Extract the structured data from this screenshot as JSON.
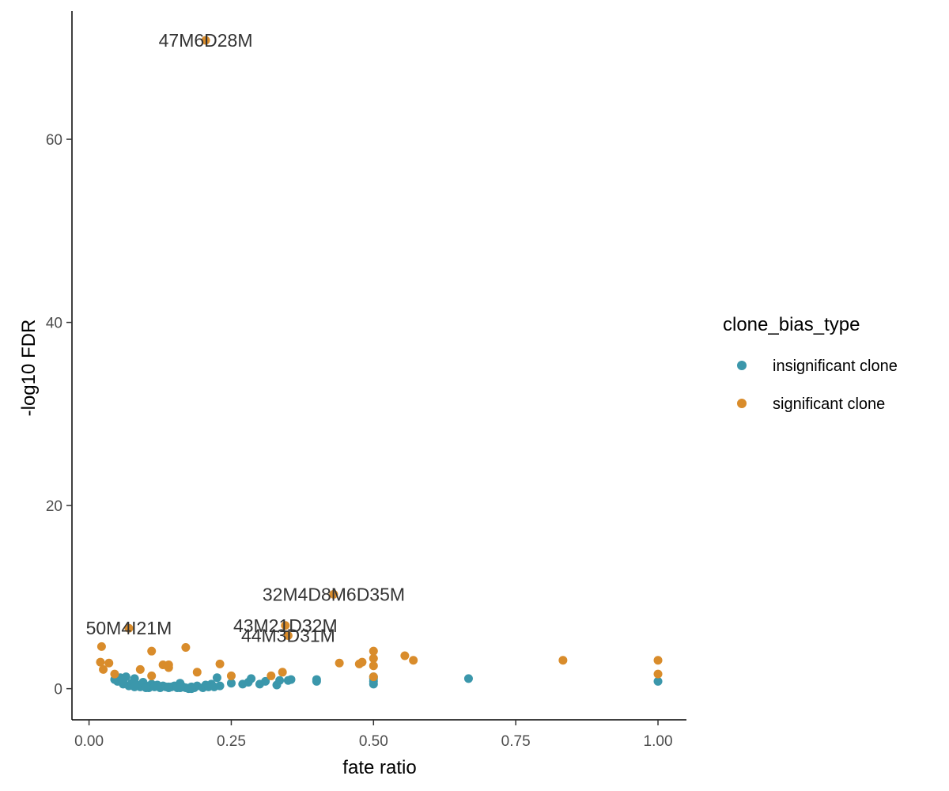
{
  "chart_data": {
    "type": "scatter",
    "title": "",
    "xlabel": "fate ratio",
    "ylabel": "-log10 FDR",
    "xlim": [
      -0.03,
      1.05
    ],
    "ylim": [
      -3.4,
      74
    ],
    "x_ticks": [
      0.0,
      0.25,
      0.5,
      0.75,
      1.0
    ],
    "x_tick_labels": [
      "0.00",
      "0.25",
      "0.50",
      "0.75",
      "1.00"
    ],
    "y_ticks": [
      0,
      20,
      40,
      60
    ],
    "y_tick_labels": [
      "0",
      "20",
      "40",
      "60"
    ],
    "grid": false,
    "legend": {
      "title": "clone_bias_type",
      "position": "right"
    },
    "series": [
      {
        "name": "insignificant clone",
        "color": "#3b97ab",
        "x": [
          0.045,
          0.05,
          0.055,
          0.06,
          0.065,
          0.07,
          0.075,
          0.08,
          0.085,
          0.09,
          0.095,
          0.1,
          0.105,
          0.11,
          0.115,
          0.12,
          0.125,
          0.13,
          0.135,
          0.14,
          0.145,
          0.15,
          0.155,
          0.16,
          0.165,
          0.17,
          0.175,
          0.18,
          0.185,
          0.19,
          0.2,
          0.205,
          0.21,
          0.215,
          0.22,
          0.225,
          0.23,
          0.25,
          0.27,
          0.28,
          0.285,
          0.3,
          0.31,
          0.33,
          0.335,
          0.35,
          0.355,
          0.4,
          0.4,
          0.5,
          0.5,
          0.5,
          0.5,
          0.667,
          1.0,
          0.06,
          0.08,
          0.1,
          0.12,
          0.14,
          0.16,
          0.18
        ],
        "y": [
          1.0,
          0.8,
          1.2,
          0.5,
          1.3,
          0.3,
          0.6,
          1.1,
          0.4,
          0.2,
          0.7,
          0.3,
          0.1,
          0.5,
          0.2,
          0.4,
          0.1,
          0.3,
          0.2,
          0.1,
          0.2,
          0.3,
          0.1,
          0.6,
          0.2,
          0.1,
          0.0,
          0.2,
          0.1,
          0.3,
          0.1,
          0.4,
          0.2,
          0.5,
          0.2,
          1.2,
          0.3,
          0.6,
          0.5,
          0.7,
          1.1,
          0.5,
          0.8,
          0.4,
          0.9,
          0.9,
          1.0,
          0.8,
          1.0,
          0.5,
          0.8,
          1.1,
          1.3,
          1.1,
          0.8,
          0.9,
          0.2,
          0.1,
          0.3,
          0.2,
          0.1,
          0.0
        ]
      },
      {
        "name": "significant clone",
        "color": "#d98c2b",
        "x": [
          0.205,
          0.43,
          0.345,
          0.35,
          0.07,
          0.02,
          0.022,
          0.025,
          0.035,
          0.045,
          0.09,
          0.11,
          0.11,
          0.13,
          0.14,
          0.14,
          0.17,
          0.19,
          0.23,
          0.25,
          0.32,
          0.34,
          0.44,
          0.475,
          0.48,
          0.5,
          0.5,
          0.5,
          0.5,
          0.555,
          0.57,
          0.833,
          1.0,
          1.0
        ],
        "y": [
          70.8,
          10.3,
          6.9,
          5.8,
          6.6,
          2.9,
          4.6,
          2.1,
          2.8,
          1.6,
          2.1,
          4.1,
          1.4,
          2.6,
          2.3,
          2.6,
          4.5,
          1.8,
          2.7,
          1.4,
          1.4,
          1.8,
          2.8,
          2.7,
          2.9,
          4.1,
          3.3,
          2.5,
          1.3,
          3.6,
          3.1,
          3.1,
          3.1,
          1.6
        ]
      }
    ],
    "point_labels": [
      {
        "text": "47M6D28M",
        "x": 0.205,
        "y": 70.8
      },
      {
        "text": "32M4D8M6D35M",
        "x": 0.43,
        "y": 10.3
      },
      {
        "text": "43M21D32M",
        "x": 0.345,
        "y": 6.9
      },
      {
        "text": "44M3D31M",
        "x": 0.35,
        "y": 5.8
      },
      {
        "text": "50M4I21M",
        "x": 0.07,
        "y": 6.6
      }
    ]
  }
}
